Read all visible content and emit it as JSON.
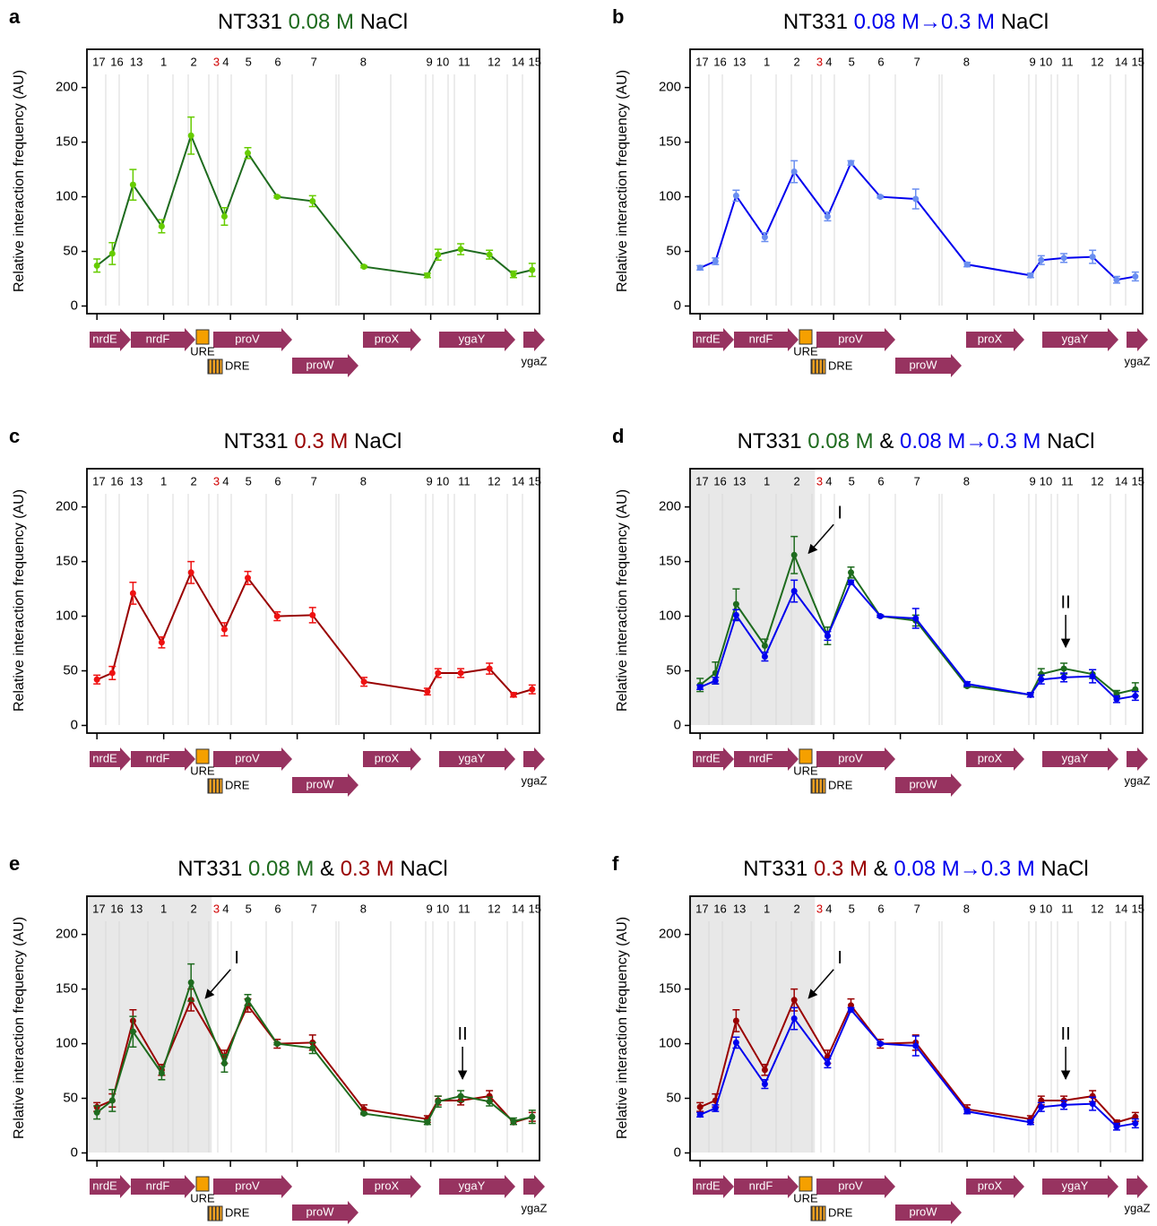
{
  "locus": {
    "fragments": [
      {
        "label": "17",
        "x": 0.03
      },
      {
        "label": "16",
        "x": 0.3
      },
      {
        "label": "13",
        "x": 0.59
      },
      {
        "label": "1",
        "x": 1.0
      },
      {
        "label": "2",
        "x": 1.45
      },
      {
        "label": "3",
        "x": 1.79,
        "color": "#d00000"
      },
      {
        "label": "4",
        "x": 1.93
      },
      {
        "label": "5",
        "x": 2.27
      },
      {
        "label": "6",
        "x": 2.71
      },
      {
        "label": "7",
        "x": 3.25
      },
      {
        "label": "8",
        "x": 3.99
      },
      {
        "label": "9",
        "x": 4.98
      },
      {
        "label": "10",
        "x": 5.18
      },
      {
        "label": "11",
        "x": 5.5
      },
      {
        "label": "12",
        "x": 5.95
      },
      {
        "label": "14",
        "x": 6.31
      },
      {
        "label": "15",
        "x": 6.56
      }
    ],
    "genes": [
      "nrdE",
      "nrdF",
      "proV",
      "proW",
      "proX",
      "ygaY",
      "ygaZ"
    ],
    "sites": [
      "URE",
      "DRE"
    ]
  },
  "chart_data": [
    {
      "type": "line",
      "panel": "a",
      "title": [
        {
          "text": "NT331",
          "color": "#000000"
        },
        {
          "text": "0.08 M",
          "color": "#1e6b1e"
        },
        {
          "text": "NaCl",
          "color": "#000000"
        }
      ],
      "ylabel": "Relative interaction frequency (AU)",
      "x": [
        0,
        0.23,
        0.54,
        0.97,
        1.41,
        1.91,
        2.26,
        2.7,
        3.23,
        4.0,
        4.95,
        5.11,
        5.45,
        5.88,
        6.24,
        6.52
      ],
      "xlim": [
        -0.15,
        6.63
      ],
      "xticks": [
        0,
        1,
        2,
        3,
        4,
        5,
        6
      ],
      "ylim": [
        -7,
        235
      ],
      "yticks": [
        0,
        50,
        100,
        150,
        200
      ],
      "series": [
        {
          "color": "#1e6b1e",
          "marker_color": "#66cc00",
          "values": [
            37,
            48,
            111,
            73,
            156,
            82,
            140,
            100,
            96,
            36,
            28,
            47,
            52,
            47,
            29,
            33
          ],
          "errors": [
            6,
            10,
            14,
            6,
            17,
            8,
            5,
            1,
            5,
            1,
            2,
            5,
            5,
            4,
            3,
            6
          ]
        }
      ]
    },
    {
      "type": "line",
      "panel": "b",
      "title": [
        {
          "text": "NT331",
          "color": "#000000"
        },
        {
          "text": "0.08 M→0.3 M",
          "color": "#0000ee"
        },
        {
          "text": "NaCl",
          "color": "#000000"
        }
      ],
      "ylabel": "Relative interaction frequency (AU)",
      "x": [
        0,
        0.23,
        0.54,
        0.97,
        1.41,
        1.91,
        2.26,
        2.7,
        3.23,
        4.0,
        4.95,
        5.11,
        5.45,
        5.88,
        6.24,
        6.52
      ],
      "xlim": [
        -0.15,
        6.63
      ],
      "xticks": [
        0,
        1,
        2,
        3,
        4,
        5,
        6
      ],
      "ylim": [
        -7,
        235
      ],
      "yticks": [
        0,
        50,
        100,
        150,
        200
      ],
      "series": [
        {
          "color": "#0000ee",
          "marker_color": "#6a8ef0",
          "values": [
            35,
            41,
            101,
            63,
            123,
            82,
            131,
            100,
            98,
            38,
            28,
            42,
            44,
            45,
            24,
            27
          ],
          "errors": [
            2,
            3,
            5,
            4,
            10,
            4,
            2,
            1,
            9,
            2,
            2,
            4,
            4,
            6,
            3,
            4
          ]
        }
      ]
    },
    {
      "type": "line",
      "panel": "c",
      "title": [
        {
          "text": "NT331",
          "color": "#000000"
        },
        {
          "text": "0.3 M",
          "color": "#990000"
        },
        {
          "text": "NaCl",
          "color": "#000000"
        }
      ],
      "ylabel": "Relative interaction frequency (AU)",
      "x": [
        0,
        0.23,
        0.54,
        0.97,
        1.41,
        1.91,
        2.26,
        2.7,
        3.23,
        4.0,
        4.95,
        5.11,
        5.45,
        5.88,
        6.24,
        6.52
      ],
      "xlim": [
        -0.15,
        6.63
      ],
      "xticks": [
        0,
        1,
        2,
        3,
        4,
        5,
        6
      ],
      "ylim": [
        -7,
        235
      ],
      "yticks": [
        0,
        50,
        100,
        150,
        200
      ],
      "series": [
        {
          "color": "#990000",
          "marker_color": "#ee1111",
          "values": [
            42,
            48,
            121,
            76,
            140,
            88,
            135,
            100,
            101,
            40,
            31,
            48,
            48,
            52,
            28,
            33
          ],
          "errors": [
            4,
            6,
            10,
            5,
            10,
            6,
            6,
            4,
            7,
            4,
            3,
            4,
            4,
            5,
            2,
            4
          ]
        }
      ]
    },
    {
      "type": "line",
      "panel": "d",
      "title": [
        {
          "text": "NT331",
          "color": "#000000"
        },
        {
          "text": "0.08 M",
          "color": "#1e6b1e"
        },
        {
          "text": "&",
          "color": "#000000"
        },
        {
          "text": "0.08 M→0.3 M",
          "color": "#0000ee"
        },
        {
          "text": "NaCl",
          "color": "#000000"
        }
      ],
      "ylabel": "Relative interaction frequency (AU)",
      "x": [
        0,
        0.23,
        0.54,
        0.97,
        1.41,
        1.91,
        2.26,
        2.7,
        3.23,
        4.0,
        4.95,
        5.11,
        5.45,
        5.88,
        6.24,
        6.52
      ],
      "xlim": [
        -0.15,
        6.63
      ],
      "xticks": [
        0,
        1,
        2,
        3,
        4,
        5,
        6
      ],
      "ylim": [
        -7,
        235
      ],
      "yticks": [
        0,
        50,
        100,
        150,
        200
      ],
      "shaded_x": [
        -0.15,
        1.72
      ],
      "annotations": [
        "I",
        "II"
      ],
      "series": [
        {
          "color": "#1e6b1e",
          "marker_color": "#1e6b1e",
          "values": [
            37,
            48,
            111,
            73,
            156,
            82,
            140,
            100,
            96,
            36,
            28,
            47,
            52,
            47,
            29,
            33
          ],
          "errors": [
            6,
            10,
            14,
            6,
            17,
            8,
            5,
            1,
            5,
            1,
            2,
            5,
            5,
            4,
            3,
            6
          ]
        },
        {
          "color": "#0000ee",
          "marker_color": "#0000ee",
          "values": [
            35,
            41,
            101,
            63,
            123,
            82,
            131,
            100,
            98,
            38,
            28,
            42,
            44,
            45,
            24,
            27
          ],
          "errors": [
            2,
            3,
            5,
            4,
            10,
            4,
            2,
            1,
            9,
            2,
            2,
            4,
            4,
            6,
            3,
            4
          ]
        }
      ]
    },
    {
      "type": "line",
      "panel": "e",
      "title": [
        {
          "text": "NT331",
          "color": "#000000"
        },
        {
          "text": "0.08 M",
          "color": "#1e6b1e"
        },
        {
          "text": "&",
          "color": "#000000"
        },
        {
          "text": "0.3 M",
          "color": "#990000"
        },
        {
          "text": "NaCl",
          "color": "#000000"
        }
      ],
      "ylabel": "Relative interaction frequency (AU)",
      "x": [
        0,
        0.23,
        0.54,
        0.97,
        1.41,
        1.91,
        2.26,
        2.7,
        3.23,
        4.0,
        4.95,
        5.11,
        5.45,
        5.88,
        6.24,
        6.52
      ],
      "xlim": [
        -0.15,
        6.63
      ],
      "xticks": [
        0,
        1,
        2,
        3,
        4,
        5,
        6
      ],
      "ylim": [
        -7,
        235
      ],
      "yticks": [
        0,
        50,
        100,
        150,
        200
      ],
      "shaded_x": [
        -0.15,
        1.72
      ],
      "annotations": [
        "I",
        "II"
      ],
      "series": [
        {
          "color": "#990000",
          "marker_color": "#990000",
          "values": [
            42,
            48,
            121,
            76,
            140,
            88,
            135,
            100,
            101,
            40,
            31,
            48,
            48,
            52,
            28,
            33
          ],
          "errors": [
            4,
            6,
            10,
            5,
            10,
            6,
            6,
            4,
            7,
            4,
            3,
            4,
            4,
            5,
            2,
            4
          ]
        },
        {
          "color": "#1e6b1e",
          "marker_color": "#1e6b1e",
          "values": [
            37,
            48,
            111,
            73,
            156,
            82,
            140,
            100,
            96,
            36,
            28,
            47,
            52,
            47,
            29,
            33
          ],
          "errors": [
            6,
            10,
            14,
            6,
            17,
            8,
            5,
            1,
            5,
            1,
            2,
            5,
            5,
            4,
            3,
            6
          ]
        }
      ]
    },
    {
      "type": "line",
      "panel": "f",
      "title": [
        {
          "text": "NT331",
          "color": "#000000"
        },
        {
          "text": "0.3 M",
          "color": "#990000"
        },
        {
          "text": "&",
          "color": "#000000"
        },
        {
          "text": "0.08 M→0.3 M",
          "color": "#0000ee"
        },
        {
          "text": "NaCl",
          "color": "#000000"
        }
      ],
      "ylabel": "Relative interaction frequency (AU)",
      "x": [
        0,
        0.23,
        0.54,
        0.97,
        1.41,
        1.91,
        2.26,
        2.7,
        3.23,
        4.0,
        4.95,
        5.11,
        5.45,
        5.88,
        6.24,
        6.52
      ],
      "xlim": [
        -0.15,
        6.63
      ],
      "xticks": [
        0,
        1,
        2,
        3,
        4,
        5,
        6
      ],
      "ylim": [
        -7,
        235
      ],
      "yticks": [
        0,
        50,
        100,
        150,
        200
      ],
      "shaded_x": [
        -0.15,
        1.72
      ],
      "annotations": [
        "I",
        "II"
      ],
      "series": [
        {
          "color": "#990000",
          "marker_color": "#990000",
          "values": [
            42,
            48,
            121,
            76,
            140,
            88,
            135,
            100,
            101,
            40,
            31,
            48,
            48,
            52,
            28,
            33
          ],
          "errors": [
            4,
            6,
            10,
            5,
            10,
            6,
            6,
            4,
            7,
            4,
            3,
            4,
            4,
            5,
            2,
            4
          ]
        },
        {
          "color": "#0000ee",
          "marker_color": "#0000ee",
          "values": [
            35,
            41,
            101,
            63,
            123,
            82,
            131,
            100,
            98,
            38,
            28,
            42,
            44,
            45,
            24,
            27
          ],
          "errors": [
            2,
            3,
            5,
            4,
            10,
            4,
            2,
            1,
            9,
            2,
            2,
            4,
            4,
            6,
            3,
            4
          ]
        }
      ]
    }
  ]
}
